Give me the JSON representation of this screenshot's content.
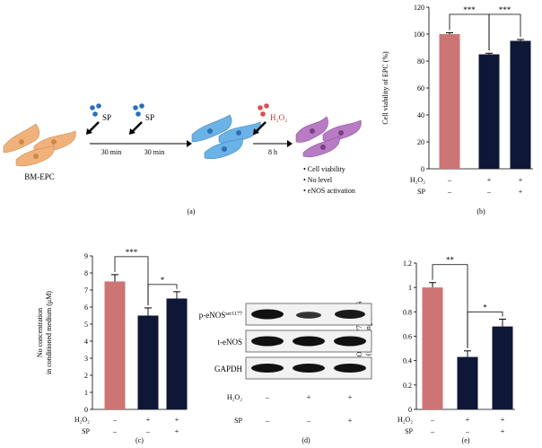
{
  "colors": {
    "control_bar": "#cd7474",
    "treat_bar": "#0f1736",
    "epc_orange": "#f0b27a",
    "epc_blue": "#6bb2e6",
    "epc_purple": "#b97cc4",
    "sp_dot": "#2a6ebd",
    "h2o2_dot": "#d9504e"
  },
  "panel_a": {
    "cell_label": "BM-EPC",
    "sp_label": "SP",
    "time1": "30 min",
    "time2": "30 min",
    "h2o2_label": "H₂O₂",
    "time3": "8 h",
    "outcomes": [
      "• Cell viability",
      "• No level",
      "• eNOS activation"
    ],
    "caption": "(a)"
  },
  "panel_d": {
    "bands": [
      "p-eNOSser1177",
      "t-eNOS",
      "GAPDH"
    ],
    "band_main": [
      "p-eNOS",
      "t-eNOS",
      "GAPDH"
    ],
    "band_sup": [
      "ser1177",
      "",
      ""
    ],
    "h2o2_label": "H₂O₂",
    "sp_label": "SP",
    "h2o2_signs": [
      "–",
      "+",
      "+"
    ],
    "sp_signs": [
      "–",
      "–",
      "+"
    ],
    "caption": "(d)"
  },
  "chart_data": [
    {
      "id": "b",
      "type": "bar",
      "categories": [
        "control",
        "H2O2",
        "H2O2+SP"
      ],
      "values": [
        100,
        85,
        95
      ],
      "errors": [
        1,
        0.8,
        1
      ],
      "ylabel": "Cell viability of EPC (%)",
      "ylim": [
        0,
        120
      ],
      "yticks": [
        0,
        20,
        40,
        60,
        80,
        100,
        120
      ],
      "significance": [
        {
          "from": 0,
          "to": 1,
          "label": "***"
        },
        {
          "from": 1,
          "to": 2,
          "label": "***"
        }
      ],
      "conditions": [
        {
          "label": "H₂O₂",
          "signs": [
            "–",
            "+",
            "+"
          ]
        },
        {
          "label": "SP",
          "signs": [
            "–",
            "–",
            "+"
          ]
        }
      ],
      "caption": "(b)"
    },
    {
      "id": "c",
      "type": "bar",
      "categories": [
        "control",
        "H2O2",
        "H2O2+SP"
      ],
      "values": [
        7.5,
        5.5,
        6.5
      ],
      "errors": [
        0.4,
        0.45,
        0.4
      ],
      "ylabel": "No concentration in conditioned medium (μM)",
      "ylabel_lines": [
        "No concentration",
        "in conditioned medium (μM)"
      ],
      "ylim": [
        0,
        9
      ],
      "yticks": [
        0,
        1,
        2,
        3,
        4,
        5,
        6,
        7,
        8,
        9
      ],
      "significance": [
        {
          "from": 0,
          "to": 1,
          "label": "***"
        },
        {
          "from": 1,
          "to": 2,
          "label": "*"
        }
      ],
      "conditions": [
        {
          "label": "H₂O₂",
          "signs": [
            "–",
            "+",
            "+"
          ]
        },
        {
          "label": "SP",
          "signs": [
            "–",
            "–",
            "+"
          ]
        }
      ],
      "caption": "(c)"
    },
    {
      "id": "e",
      "type": "bar",
      "categories": [
        "control",
        "H2O2",
        "H2O2+SP"
      ],
      "values": [
        1.0,
        0.43,
        0.68
      ],
      "errors": [
        0.04,
        0.05,
        0.06
      ],
      "ylabel": "p-eNOSser1177/t-eNOS (fold change)",
      "ylabel_lines": [
        "p-eNOSser1177/t-eNOS",
        "(fold change)"
      ],
      "ylim": [
        0,
        1.2
      ],
      "yticks": [
        0,
        0.2,
        0.4,
        0.6,
        0.8,
        1,
        1.2
      ],
      "significance": [
        {
          "from": 0,
          "to": 1,
          "label": "**"
        },
        {
          "from": 1,
          "to": 2,
          "label": "*"
        }
      ],
      "conditions": [
        {
          "label": "H₂O₂",
          "signs": [
            "–",
            "+",
            "+"
          ]
        },
        {
          "label": "SP",
          "signs": [
            "–",
            "–",
            "+"
          ]
        }
      ],
      "caption": "(e)"
    }
  ]
}
